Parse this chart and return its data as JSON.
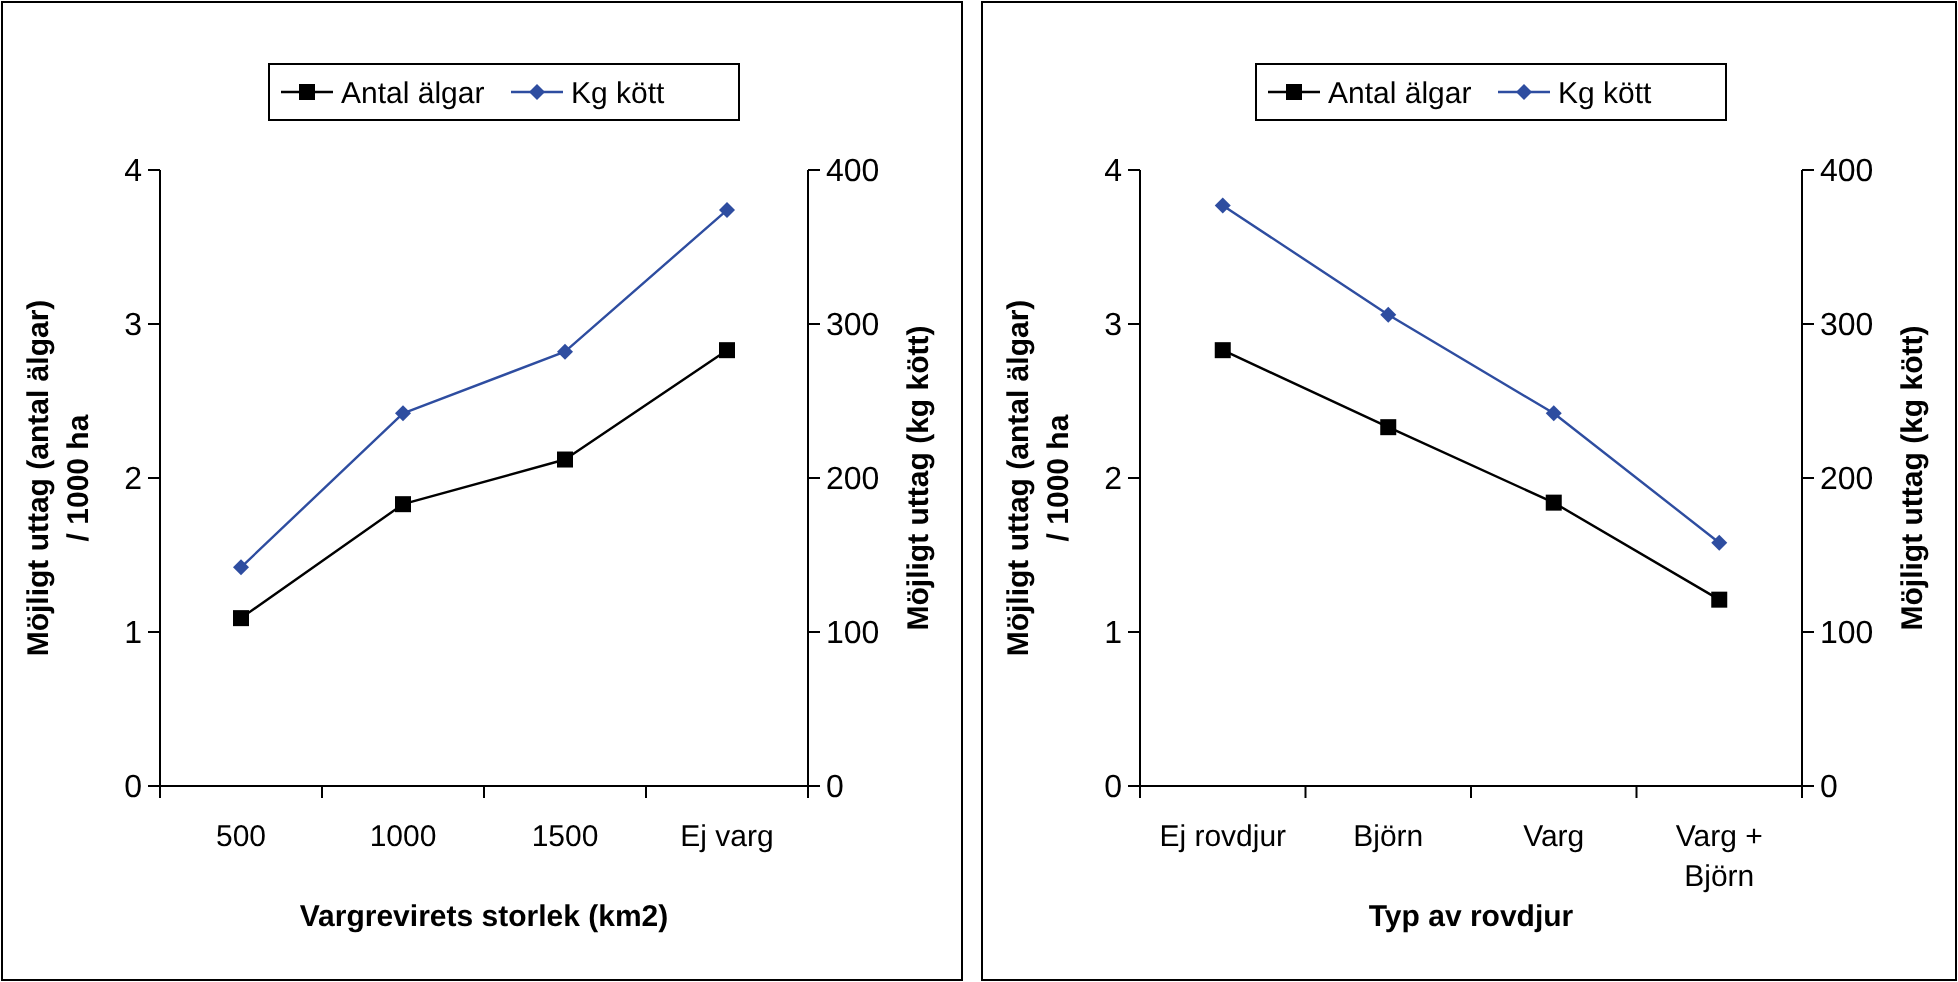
{
  "chart_data": [
    {
      "type": "line",
      "xlabel": "Vargrevirets storlek (km2)",
      "ylabel": "Möjligt uttag (antal älgar) / 1000 ha",
      "y2label": "Möjligt uttag (kg kött)",
      "categories": [
        "500",
        "1000",
        "1500",
        "Ej varg"
      ],
      "series": [
        {
          "name": "Antal älgar",
          "color": "#000000",
          "marker": "square",
          "values": [
            1.09,
            1.83,
            2.12,
            2.83
          ]
        },
        {
          "name": "Kg kött",
          "color": "#2e4da0",
          "marker": "diamond",
          "axis": "y2",
          "values": [
            142,
            242,
            282,
            374
          ]
        }
      ],
      "ylim": [
        0,
        4
      ],
      "yticks": [
        0,
        1,
        2,
        3,
        4
      ],
      "y2lim": [
        0,
        400
      ],
      "y2ticks": [
        0,
        100,
        200,
        300,
        400
      ],
      "legend": "top",
      "grid": false
    },
    {
      "type": "line",
      "xlabel": "Typ av rovdjur",
      "ylabel": "Möjligt uttag (antal älgar) / 1000 ha",
      "y2label": "Möjligt uttag (kg kött)",
      "categories": [
        "Ej rovdjur",
        "Björn",
        "Varg",
        "Varg + Björn"
      ],
      "series": [
        {
          "name": "Antal älgar",
          "color": "#000000",
          "marker": "square",
          "values": [
            2.83,
            2.33,
            1.84,
            1.21
          ]
        },
        {
          "name": "Kg kött",
          "color": "#2e4da0",
          "marker": "diamond",
          "axis": "y2",
          "values": [
            377,
            306,
            242,
            158
          ]
        }
      ],
      "ylim": [
        0,
        4
      ],
      "yticks": [
        0,
        1,
        2,
        3,
        4
      ],
      "y2lim": [
        0,
        400
      ],
      "y2ticks": [
        0,
        100,
        200,
        300,
        400
      ],
      "legend": "top",
      "grid": false
    }
  ]
}
